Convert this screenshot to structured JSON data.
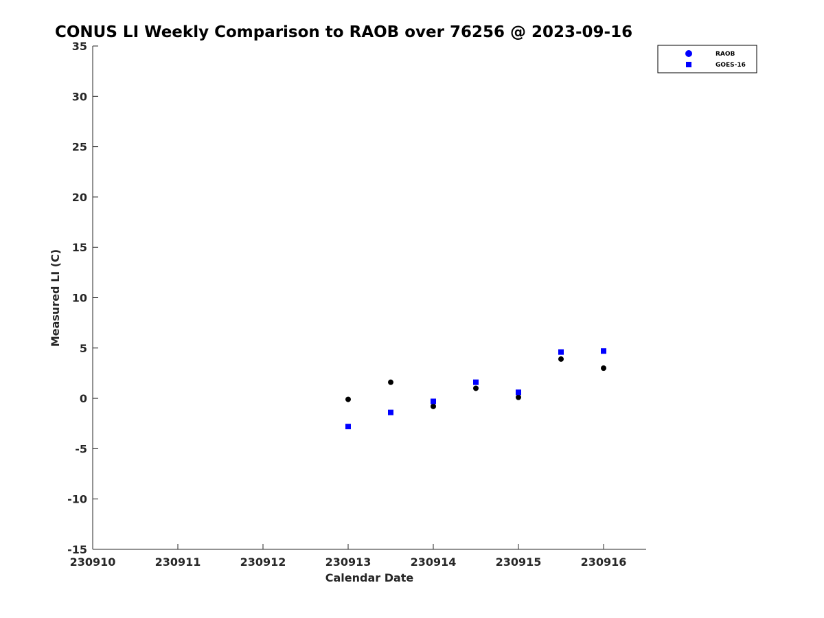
{
  "chart_data": {
    "type": "scatter",
    "title": "CONUS LI Weekly Comparison to RAOB over 76256 @ 2023-09-16",
    "xlabel": "Calendar Date",
    "ylabel": "Measured LI (C)",
    "xlim": [
      230910,
      230916.5
    ],
    "ylim": [
      -15,
      35
    ],
    "x_ticks": [
      230910,
      230911,
      230912,
      230913,
      230914,
      230915,
      230916
    ],
    "x_tick_labels": [
      "230910",
      "230911",
      "230912",
      "230913",
      "230914",
      "230915",
      "230916"
    ],
    "y_ticks": [
      -15,
      -10,
      -5,
      0,
      5,
      10,
      15,
      20,
      25,
      30,
      35
    ],
    "y_tick_labels": [
      "-15",
      "-10",
      "-5",
      "0",
      "5",
      "10",
      "15",
      "20",
      "25",
      "30",
      "35"
    ],
    "grid": false,
    "legend_position": "top-right (outside plot area)",
    "series": [
      {
        "name": "RAOB",
        "marker": "circle",
        "legend_color": "#0000ff",
        "color": "#000000",
        "x": [
          230913,
          230913.5,
          230914,
          230914.5,
          230915,
          230915.5,
          230916
        ],
        "y": [
          -0.1,
          1.6,
          -0.8,
          1.0,
          0.1,
          3.9,
          3.0
        ]
      },
      {
        "name": "GOES-16",
        "marker": "square",
        "color": "#0000ff",
        "x": [
          230913,
          230913.5,
          230914,
          230914.5,
          230915,
          230915.5,
          230916
        ],
        "y": [
          -2.8,
          -1.4,
          -0.3,
          1.6,
          0.6,
          4.6,
          4.7
        ]
      }
    ]
  }
}
